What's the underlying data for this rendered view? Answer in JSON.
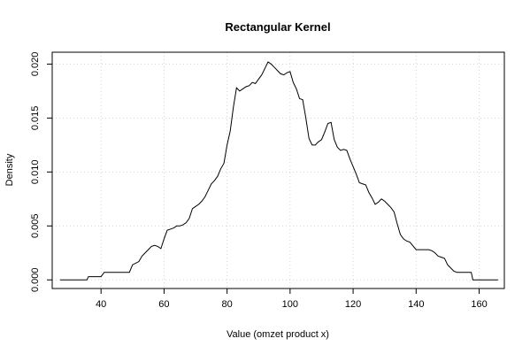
{
  "chart_data": {
    "type": "line",
    "title": "Rectangular Kernel",
    "xlabel": "Value (omzet product x)",
    "ylabel": "Density",
    "xlim": [
      24.5,
      168
    ],
    "ylim": [
      -0.0008,
      0.0211
    ],
    "x_ticks": [
      40,
      60,
      80,
      100,
      120,
      140,
      160
    ],
    "y_ticks": [
      0.0,
      0.005,
      0.01,
      0.015,
      0.02
    ],
    "x_tick_labels": [
      "40",
      "60",
      "80",
      "100",
      "120",
      "140",
      "160"
    ],
    "y_tick_labels": [
      "0.000",
      "0.005",
      "0.010",
      "0.015",
      "0.020"
    ],
    "grid": true,
    "legend": "none",
    "line_color": "#000000",
    "grid_color": "#d3d3d3",
    "series": [
      {
        "x": [
          27,
          35.5,
          36,
          40,
          41,
          49,
          50,
          52,
          53,
          54,
          55,
          56,
          57,
          58,
          59,
          60,
          61,
          62,
          63,
          64,
          65,
          66,
          67,
          68,
          69,
          70,
          71,
          72,
          73,
          74,
          75,
          76,
          77,
          78,
          79,
          80,
          81,
          82,
          83,
          84,
          85,
          86,
          87,
          88,
          89,
          90,
          91,
          92,
          93,
          94,
          95,
          96,
          97,
          98,
          99,
          100,
          101,
          102,
          103,
          104,
          105,
          106,
          107,
          108,
          109,
          110,
          111,
          112,
          113,
          114,
          115,
          116,
          117,
          118,
          119,
          120,
          121,
          122,
          123,
          124,
          125,
          126,
          127,
          128,
          129,
          130,
          131,
          132,
          133,
          134,
          135,
          136,
          137,
          138,
          140,
          142,
          144,
          145,
          146,
          147,
          148,
          149,
          150,
          151,
          152,
          153,
          155,
          157.5,
          158,
          166
        ],
        "y": [
          0.0,
          0.0,
          0.0003,
          0.0003,
          0.0007,
          0.0007,
          0.0014,
          0.0017,
          0.0022,
          0.0025,
          0.0028,
          0.0031,
          0.0032,
          0.0031,
          0.0029,
          0.0038,
          0.0046,
          0.0047,
          0.0048,
          0.005,
          0.005,
          0.0051,
          0.0053,
          0.0057,
          0.0066,
          0.0068,
          0.007,
          0.0073,
          0.0077,
          0.0083,
          0.0089,
          0.0092,
          0.0096,
          0.0103,
          0.0108,
          0.0125,
          0.0138,
          0.016,
          0.0178,
          0.0175,
          0.0177,
          0.0179,
          0.018,
          0.0183,
          0.0182,
          0.0186,
          0.019,
          0.0196,
          0.0202,
          0.02,
          0.0197,
          0.0194,
          0.0191,
          0.019,
          0.0192,
          0.0193,
          0.0183,
          0.0177,
          0.0168,
          0.0167,
          0.015,
          0.0131,
          0.0125,
          0.0125,
          0.0128,
          0.013,
          0.0137,
          0.0145,
          0.0146,
          0.013,
          0.0123,
          0.012,
          0.0121,
          0.012,
          0.0112,
          0.0105,
          0.0098,
          0.009,
          0.0089,
          0.0088,
          0.0081,
          0.0076,
          0.007,
          0.0072,
          0.0075,
          0.0073,
          0.007,
          0.0067,
          0.0063,
          0.0052,
          0.0042,
          0.0038,
          0.0036,
          0.0035,
          0.0028,
          0.0028,
          0.0028,
          0.0027,
          0.0025,
          0.0022,
          0.0021,
          0.002,
          0.0014,
          0.0011,
          0.0008,
          0.0007,
          0.0007,
          0.0007,
          0.0,
          0.0
        ]
      }
    ]
  }
}
